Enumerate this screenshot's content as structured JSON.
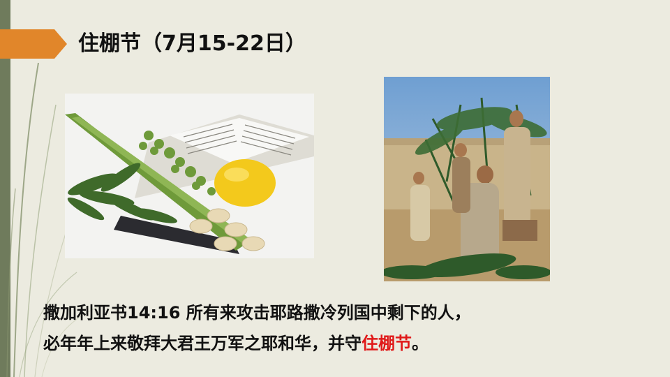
{
  "slide": {
    "title": "住棚节（7月15-22日）",
    "verse": {
      "line1": "撒加利亚书14:16  所有来攻击耶路撒冷列国中剩下的人，",
      "line2_before": "必年年上来敬拜大君王万军之耶和华，并守",
      "line2_highlight": "住棚节",
      "line2_after": "。"
    }
  },
  "colors": {
    "background": "#ecebe0",
    "accent_bar": "#6f7b5c",
    "title_arrow": "#e1862a",
    "highlight": "#e01919"
  },
  "images": {
    "left": "four-species-lulav-etrog-on-open-book",
    "right": "men-building-sukkah-booth-with-palm-branches"
  }
}
